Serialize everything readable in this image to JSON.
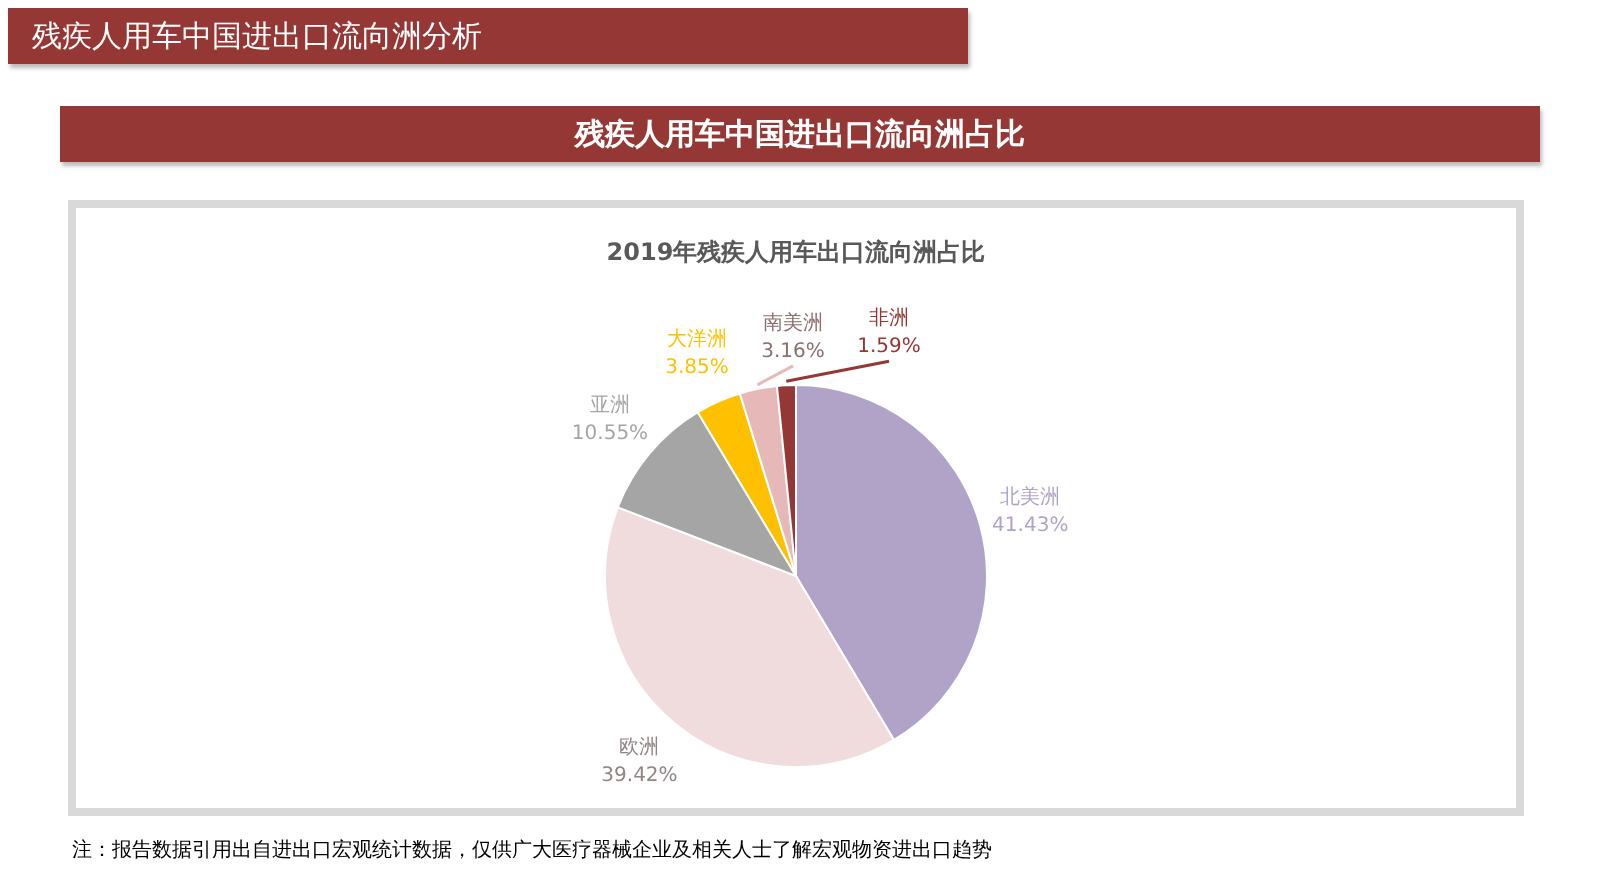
{
  "chart_data": {
    "type": "pie",
    "title": "2019年残疾人用车出口流向洲占比",
    "subtitle": "残疾人用车中国进出口流向洲占比",
    "annotations": [
      "残疾人用车中国进出口流向洲分析",
      "注：报告数据引用出自进出口宏观统计数据，仅供广大医疗器械企业及相关人士了解宏观物资进出口趋势"
    ],
    "categories": [
      "北美洲",
      "欧洲",
      "亚洲",
      "大洋洲",
      "南美洲",
      "非洲"
    ],
    "values": [
      41.43,
      39.42,
      10.55,
      3.85,
      3.16,
      1.59
    ],
    "value_labels": [
      "41.43%",
      "39.42%",
      "10.55%",
      "3.85%",
      "3.16%",
      "1.59%"
    ],
    "colors": [
      "#b1a3c8",
      "#f0dcdc",
      "#a5a5a5",
      "#ffc000",
      "#e6b9b8",
      "#953735"
    ],
    "data_labels": true,
    "legend": false
  }
}
